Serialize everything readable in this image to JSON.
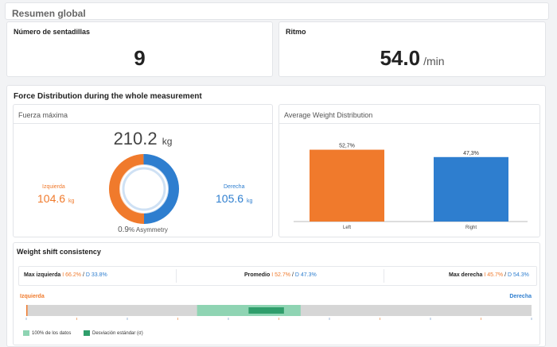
{
  "header": {
    "title": "Resumen global"
  },
  "count_card": {
    "label": "Número de sentadillas",
    "value": "9"
  },
  "rhythm_card": {
    "label": "Ritmo",
    "value": "54.0",
    "unit": "/min"
  },
  "force": {
    "title": "Force Distribution during the whole measurement",
    "max_force": {
      "title": "Fuerza máxima",
      "total_value": "210.2",
      "total_unit": "kg",
      "left_label": "Izquierda",
      "left_value": "104.6",
      "left_unit": "kg",
      "right_label": "Derecha",
      "right_value": "105.6",
      "right_unit": "kg",
      "asymmetry_value": "0.9",
      "asymmetry_label": "% Asymmetry"
    },
    "avg_weight": {
      "title": "Average Weight Distribution"
    }
  },
  "shift": {
    "title": "Weight shift consistency",
    "max_left_label": "Max izquierda",
    "max_left_l": "I 66.2%",
    "max_left_r": "D 33.8%",
    "avg_label": "Promedio",
    "avg_l": "I 52.7%",
    "avg_r": "D 47.3%",
    "max_right_label": "Max derecha",
    "max_right_l": "I 45.7%",
    "max_right_r": "D 54.3%",
    "left_end_label": "Izquierda",
    "right_end_label": "Derecha",
    "legend_all": "100% de los datos",
    "legend_std": "Desviación estándar (σ)",
    "range_all": [
      33.8,
      54.3
    ],
    "range_std": [
      44,
      51
    ]
  },
  "colors": {
    "left": "#f07a2c",
    "right": "#2e7ecf",
    "range_light": "#8fd4b3",
    "range_dark": "#2f9e6b"
  },
  "chart_data": [
    {
      "type": "bar",
      "title": "Average Weight Distribution",
      "categories": [
        "Left",
        "Right"
      ],
      "values": [
        52.7,
        47.3
      ],
      "data_labels": [
        "52,7%",
        "47,3%"
      ],
      "ylim": [
        0,
        60
      ]
    },
    {
      "type": "pie",
      "title": "Fuerza máxima",
      "categories": [
        "Izquierda",
        "Derecha"
      ],
      "values": [
        104.6,
        105.6
      ]
    }
  ]
}
